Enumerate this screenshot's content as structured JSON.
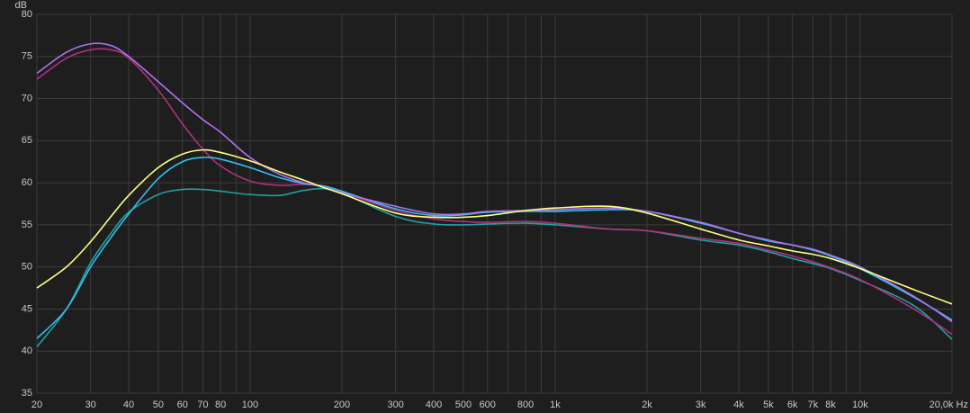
{
  "chart_data": {
    "type": "line",
    "y_label": "dB",
    "log_x": true,
    "grid": true,
    "background": "#1e1e1e",
    "x": [
      20,
      25,
      30,
      35,
      40,
      50,
      60,
      70,
      80,
      100,
      125,
      150,
      175,
      200,
      300,
      400,
      500,
      600,
      800,
      1000,
      1500,
      2000,
      3000,
      4000,
      5000,
      6000,
      7000,
      8000,
      10000,
      15000,
      20000
    ],
    "series": [
      {
        "color": "#20a0a0",
        "values": [
          40.5,
          45,
          50.5,
          54,
          56.5,
          58.6,
          59.2,
          59.2,
          59,
          58.6,
          58.5,
          59.1,
          59.3,
          58.8,
          56,
          55.1,
          55,
          55.1,
          55.2,
          55,
          54.5,
          54.3,
          53.2,
          52.6,
          51.8,
          51,
          50.4,
          49.8,
          48.4,
          45.4,
          41.4
        ]
      },
      {
        "color": "#b0307c",
        "values": [
          72.3,
          74.8,
          75.8,
          75.8,
          74.8,
          71,
          67,
          64,
          62,
          60.2,
          59.7,
          59.8,
          59.6,
          58.9,
          56.7,
          55.7,
          55.4,
          55.3,
          55.4,
          55.2,
          54.5,
          54.3,
          53.4,
          52.8,
          52,
          51.3,
          50.6,
          49.9,
          48.5,
          45,
          42
        ]
      },
      {
        "color": "#30c0f0",
        "values": [
          41.5,
          45,
          50,
          53.5,
          56.3,
          60.5,
          62.5,
          63,
          62.8,
          61.8,
          60.6,
          59.9,
          59.6,
          59,
          56.9,
          56.1,
          56.2,
          56.5,
          56.6,
          56.6,
          56.8,
          56.6,
          55.2,
          54,
          53.1,
          52.6,
          52,
          51.3,
          49.8,
          46.4,
          43.7
        ]
      },
      {
        "color": "#b070f0",
        "values": [
          73,
          75.5,
          76.5,
          76.3,
          75,
          72,
          69.5,
          67.5,
          66,
          63,
          61,
          60,
          59.5,
          58.8,
          57.2,
          56.3,
          56.3,
          56.6,
          56.7,
          56.8,
          57,
          56.6,
          55.3,
          54,
          53.2,
          52.6,
          52.1,
          51.4,
          50,
          46.5,
          43.5
        ]
      },
      {
        "color": "#ffff80",
        "values": [
          47.5,
          50,
          53,
          56,
          58.5,
          61.8,
          63.4,
          63.9,
          63.6,
          62.6,
          61.3,
          60.3,
          59.4,
          58.7,
          56.4,
          55.9,
          55.9,
          56.1,
          56.7,
          57,
          57.2,
          56.4,
          54.5,
          53.2,
          52.5,
          51.9,
          51.5,
          51,
          49.8,
          47.3,
          45.6
        ]
      }
    ],
    "xlim": [
      20,
      20000
    ],
    "ylim": [
      35,
      80
    ],
    "xticks": [
      20,
      30,
      40,
      50,
      60,
      70,
      80,
      100,
      200,
      300,
      400,
      500,
      600,
      800,
      {
        "value": 1000,
        "label": "1k"
      },
      {
        "value": 2000,
        "label": "2k"
      },
      {
        "value": 3000,
        "label": "3k"
      },
      {
        "value": 4000,
        "label": "4k"
      },
      {
        "value": 5000,
        "label": "5k"
      },
      {
        "value": 6000,
        "label": "6k"
      },
      {
        "value": 7000,
        "label": "7k"
      },
      {
        "value": 8000,
        "label": "8k"
      },
      {
        "value": 10000,
        "label": "10k"
      },
      {
        "value": 20000,
        "label": "20,0k Hz"
      }
    ],
    "minor_xticks": [
      90,
      700,
      900,
      9000
    ],
    "yticks": [
      35,
      40,
      45,
      50,
      55,
      60,
      65,
      70,
      75,
      80
    ]
  }
}
